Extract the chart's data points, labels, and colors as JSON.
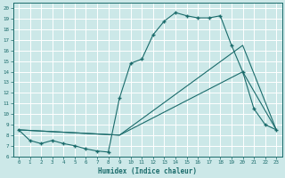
{
  "xlabel": "Humidex (Indice chaleur)",
  "xlim": [
    -0.5,
    23.5
  ],
  "ylim": [
    6,
    20.5
  ],
  "xticks": [
    0,
    1,
    2,
    3,
    4,
    5,
    6,
    7,
    8,
    9,
    10,
    11,
    12,
    13,
    14,
    15,
    16,
    17,
    18,
    19,
    20,
    21,
    22,
    23
  ],
  "yticks": [
    6,
    7,
    8,
    9,
    10,
    11,
    12,
    13,
    14,
    15,
    16,
    17,
    18,
    19,
    20
  ],
  "bg_color": "#cce8e8",
  "line_color": "#1a6b6b",
  "grid_color": "#ffffff",
  "line1_x": [
    0,
    1,
    2,
    3,
    4,
    5,
    6,
    7,
    8,
    9,
    10,
    11,
    12,
    13,
    14,
    15,
    16,
    17,
    18,
    19,
    20,
    21,
    22,
    23
  ],
  "line1_y": [
    8.5,
    7.5,
    7.2,
    7.5,
    7.2,
    7.0,
    6.7,
    6.5,
    6.4,
    11.5,
    14.8,
    15.2,
    17.5,
    18.8,
    19.6,
    19.3,
    19.1,
    19.1,
    19.3,
    16.5,
    14.0,
    10.5,
    9.0,
    8.5
  ],
  "line2_x": [
    0,
    9,
    20,
    23
  ],
  "line2_y": [
    8.5,
    8.0,
    14.0,
    8.5
  ],
  "line3_x": [
    0,
    9,
    20,
    23
  ],
  "line3_y": [
    8.5,
    8.0,
    16.5,
    8.5
  ]
}
